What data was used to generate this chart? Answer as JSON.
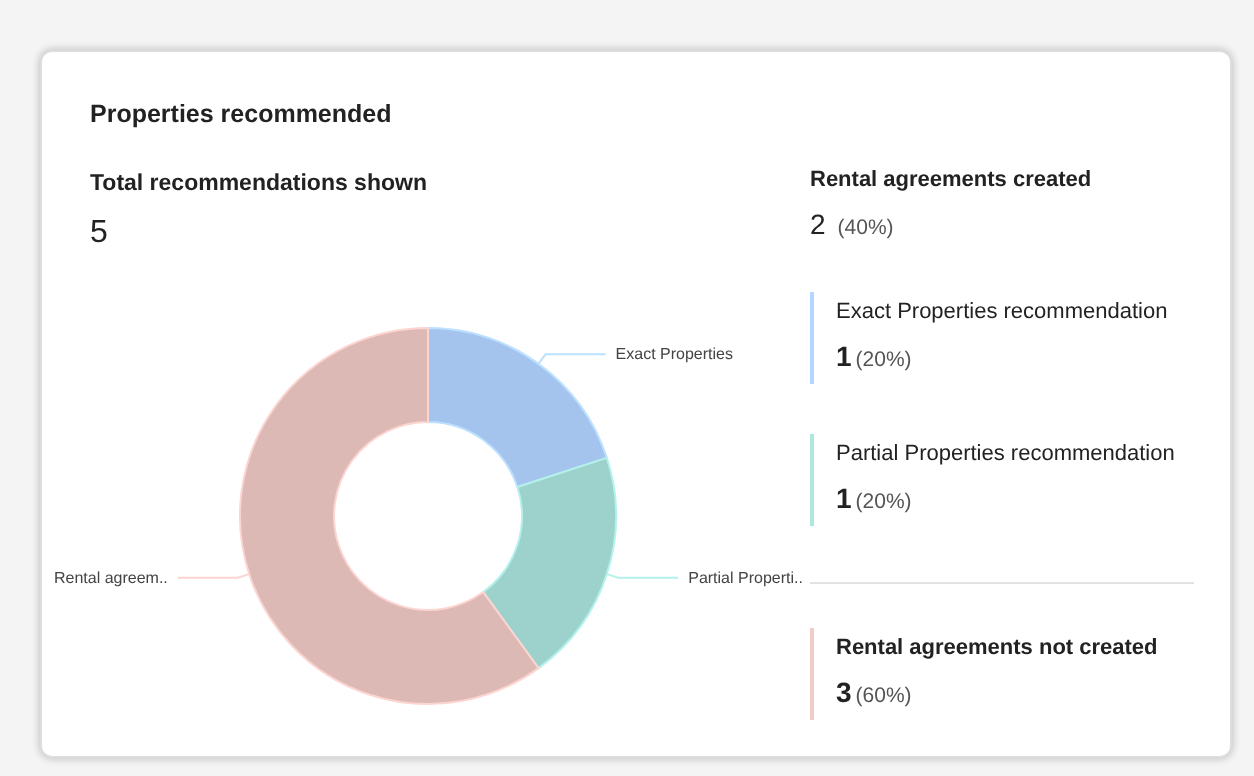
{
  "chart_data": {
    "type": "donut",
    "title": "Properties recommended",
    "subtitle": "Total recommendations shown",
    "categories": [
      "Exact Properties",
      "Partial Properti..",
      "Rental agreem.."
    ],
    "values": [
      20,
      20,
      60
    ],
    "colors": [
      "#a4c4ee",
      "#9dd2cc",
      "#dcb9b5"
    ],
    "legend": false,
    "annotations": [
      "5",
      "Rental agreements created",
      "2",
      "(40%)",
      "Exact Properties recommendation",
      "1",
      "(20%)",
      "Partial Properties recommendation",
      "1",
      "(20%)",
      "Rental agreements not created",
      "3",
      "(60%)"
    ]
  }
}
